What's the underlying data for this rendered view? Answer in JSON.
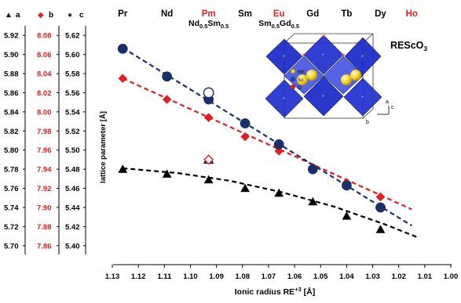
{
  "chart_data": {
    "type": "scatter",
    "title": "",
    "xlabel": "Ionic radius RE",
    "xlabel_sup": "+3",
    "xlabel_unit": " [Å]",
    "ylabel": "lattice parameter [Å]",
    "x_reversed": true,
    "xlim": [
      1.0,
      1.13
    ],
    "x_ticks": [
      "1.13",
      "1.12",
      "1.11",
      "1.10",
      "1.09",
      "1.08",
      "1.07",
      "1.06",
      "1.05",
      "1.04",
      "1.03",
      "1.02",
      "1.01",
      "1.00"
    ],
    "y_axes": [
      {
        "name": "a",
        "color": "#000000",
        "marker": "triangle",
        "ylim": [
          5.69,
          5.93
        ],
        "ticks": [
          "5.70",
          "5.72",
          "5.74",
          "5.76",
          "5.78",
          "5.80",
          "5.82",
          "5.84",
          "5.86",
          "5.88",
          "5.90",
          "5.92"
        ]
      },
      {
        "name": "b",
        "color": "#e02020",
        "marker": "diamond",
        "ylim": [
          7.85,
          8.09
        ],
        "ticks": [
          "7.86",
          "7.88",
          "7.90",
          "7.92",
          "7.94",
          "7.96",
          "7.98",
          "8.00",
          "8.02",
          "8.04",
          "8.06",
          "8.08"
        ]
      },
      {
        "name": "c",
        "color": "#1a2f6a",
        "marker": "circle",
        "ylim": [
          5.39,
          5.63
        ],
        "ticks": [
          "5.40",
          "5.42",
          "5.44",
          "5.46",
          "5.48",
          "5.50",
          "5.52",
          "5.54",
          "5.56",
          "5.58",
          "5.60",
          "5.62"
        ]
      }
    ],
    "elements": [
      {
        "name": "Pr",
        "color": "#000000",
        "x": 1.126
      },
      {
        "name": "Nd",
        "color": "#000000",
        "x": 1.109
      },
      {
        "name": "Pm",
        "color": "#e02020",
        "x": 1.093
      },
      {
        "name": "Sm",
        "color": "#000000",
        "x": 1.079
      },
      {
        "name": "Eu",
        "color": "#e02020",
        "x": 1.066
      },
      {
        "name": "Gd",
        "color": "#000000",
        "x": 1.053
      },
      {
        "name": "Tb",
        "color": "#000000",
        "x": 1.04
      },
      {
        "name": "Dy",
        "color": "#000000",
        "x": 1.027
      },
      {
        "name": "Ho",
        "color": "#e02020",
        "x": 1.015
      }
    ],
    "mixed_labels": [
      {
        "main1": "Nd",
        "sub1": "0.5",
        "main2": "Sm",
        "sub2": "0.5",
        "x": 1.093
      },
      {
        "main1": "Sm",
        "sub1": "0.5",
        "main2": "Gd",
        "sub2": "0.5",
        "x": 1.066
      }
    ],
    "series": [
      {
        "name": "a",
        "axis": 0,
        "x": [
          1.126,
          1.109,
          1.093,
          1.079,
          1.066,
          1.053,
          1.04,
          1.027
        ],
        "y": [
          5.78,
          5.775,
          5.769,
          5.76,
          5.755,
          5.746,
          5.731,
          5.717
        ]
      },
      {
        "name": "b",
        "axis": 1,
        "x": [
          1.126,
          1.109,
          1.093,
          1.079,
          1.066,
          1.053,
          1.04,
          1.027
        ],
        "y": [
          8.035,
          8.013,
          7.994,
          7.974,
          7.959,
          7.942,
          7.926,
          7.911
        ]
      },
      {
        "name": "c",
        "axis": 2,
        "x": [
          1.126,
          1.109,
          1.093,
          1.079,
          1.066,
          1.053,
          1.04,
          1.027
        ],
        "y": [
          5.606,
          5.577,
          5.553,
          5.528,
          5.506,
          5.48,
          5.463,
          5.44
        ]
      }
    ],
    "open_points": [
      {
        "name": "a",
        "axis": 0,
        "x": 1.093,
        "y": 5.79
      },
      {
        "name": "b",
        "axis": 1,
        "x": 1.093,
        "y": 7.95
      },
      {
        "name": "c",
        "axis": 2,
        "x": 1.093,
        "y": 5.56
      }
    ],
    "fits": [
      {
        "name": "a",
        "axis": 0,
        "kind": "quadratic",
        "x": [
          1.126,
          1.105,
          1.085,
          1.065,
          1.045,
          1.025,
          1.013
        ],
        "y": [
          5.781,
          5.776,
          5.768,
          5.756,
          5.741,
          5.722,
          5.709
        ]
      },
      {
        "name": "b",
        "axis": 1,
        "kind": "linear",
        "x": [
          1.126,
          1.015
        ],
        "y": [
          8.035,
          7.898
        ]
      },
      {
        "name": "c",
        "axis": 2,
        "kind": "linear",
        "x": [
          1.126,
          1.015
        ],
        "y": [
          5.607,
          5.421
        ]
      }
    ],
    "inset": {
      "label": "REScO",
      "label_sub": "3",
      "atom_legend": [
        {
          "name": "RE",
          "color": "#f0d020"
        },
        {
          "name": "Sc",
          "color": "#2040c0"
        },
        {
          "name": "O",
          "color": "#e02020"
        }
      ],
      "axes": [
        "c",
        "a",
        "b"
      ]
    }
  }
}
